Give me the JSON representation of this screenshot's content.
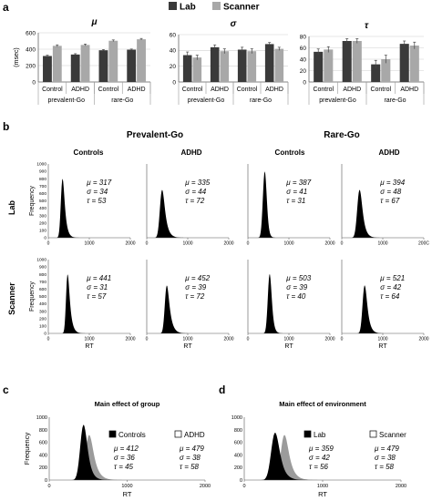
{
  "panel_letters": {
    "a": "a",
    "b": "b",
    "c": "c",
    "d": "d"
  },
  "top_legend": [
    {
      "label": "Lab",
      "color": "#3a3a3a"
    },
    {
      "label": "Scanner",
      "color": "#a8a8a8"
    }
  ],
  "colors": {
    "lab": "#3a3a3a",
    "scanner": "#a8a8a8",
    "black": "#000000",
    "grey_hist": "#8a8a8a"
  },
  "panel_b_headers": {
    "prevalent": "Prevalent-Go",
    "rare": "Rare-Go",
    "columns": [
      "Controls",
      "ADHD",
      "Controls",
      "ADHD"
    ],
    "rows": [
      "Lab",
      "Scanner"
    ]
  },
  "chart_data": [
    {
      "type": "bar",
      "title": "μ",
      "ylabel": "(msec)",
      "ylim": [
        0,
        600
      ],
      "yticks": [
        "0",
        "200",
        "400",
        "600"
      ],
      "categories": [
        "Control",
        "ADHD",
        "Control",
        "ADHD"
      ],
      "groups": [
        "prevalent-Go",
        "rare-Go"
      ],
      "series": [
        {
          "name": "Lab",
          "values": [
            317,
            335,
            387,
            394
          ],
          "err": [
            10,
            10,
            8,
            8
          ]
        },
        {
          "name": "Scanner",
          "values": [
            441,
            452,
            503,
            521
          ],
          "err": [
            12,
            10,
            10,
            10
          ]
        }
      ]
    },
    {
      "type": "bar",
      "title": "σ",
      "ylim": [
        0,
        60
      ],
      "yticks": [
        "0",
        "20",
        "40",
        "60"
      ],
      "categories": [
        "Control",
        "ADHD",
        "Control",
        "ADHD"
      ],
      "groups": [
        "prevalent-Go",
        "rare-Go"
      ],
      "series": [
        {
          "name": "Lab",
          "values": [
            34,
            44,
            41,
            48
          ],
          "err": [
            4,
            3,
            3,
            2
          ]
        },
        {
          "name": "Scanner",
          "values": [
            31,
            39,
            39,
            42
          ],
          "err": [
            3,
            3,
            3,
            2
          ]
        }
      ]
    },
    {
      "type": "bar",
      "title": "τ",
      "ylim": [
        0,
        80
      ],
      "yticks": [
        "0",
        "20",
        "40",
        "60",
        "80"
      ],
      "categories": [
        "Control",
        "ADHD",
        "Control",
        "ADHD"
      ],
      "groups": [
        "prevalent-Go",
        "rare-Go"
      ],
      "series": [
        {
          "name": "Lab",
          "values": [
            53,
            72,
            31,
            67
          ],
          "err": [
            5,
            4,
            7,
            5
          ]
        },
        {
          "name": "Scanner",
          "values": [
            57,
            72,
            40,
            64
          ],
          "err": [
            5,
            4,
            7,
            6
          ]
        }
      ]
    },
    {
      "type": "area",
      "name": "panel-b-histograms",
      "ylabel": "Frequency",
      "xlabel": "RT",
      "xlim": [
        0,
        2000
      ],
      "ylim": [
        0,
        1000
      ],
      "xticks": [
        "0",
        "1000",
        "2000"
      ],
      "xticks_last_col_lab": [
        "0",
        "1000",
        "200C"
      ],
      "yticks": [
        "0",
        "100",
        "200",
        "300",
        "400",
        "500",
        "600",
        "700",
        "800",
        "900",
        "1000"
      ],
      "cells": [
        {
          "row": "Lab",
          "col": 0,
          "mu": 317,
          "sigma": 34,
          "tau": 53,
          "peak": 800,
          "mu_text": "μ = 317",
          "sigma_text": "σ = 34",
          "tau_text": "τ = 53"
        },
        {
          "row": "Lab",
          "col": 1,
          "mu": 335,
          "sigma": 44,
          "tau": 72,
          "peak": 650,
          "mu_text": "μ = 335",
          "sigma_text": "σ = 44",
          "tau_text": "τ = 72"
        },
        {
          "row": "Lab",
          "col": 2,
          "mu": 387,
          "sigma": 41,
          "tau": 31,
          "peak": 900,
          "mu_text": "μ = 387",
          "sigma_text": "σ = 41",
          "tau_text": "τ = 31"
        },
        {
          "row": "Lab",
          "col": 3,
          "mu": 394,
          "sigma": 48,
          "tau": 67,
          "peak": 650,
          "mu_text": "μ = 394",
          "sigma_text": "σ = 48",
          "tau_text": "τ = 67"
        },
        {
          "row": "Scanner",
          "col": 0,
          "mu": 441,
          "sigma": 31,
          "tau": 57,
          "peak": 800,
          "mu_text": "μ = 441",
          "sigma_text": "σ = 31",
          "tau_text": "τ = 57"
        },
        {
          "row": "Scanner",
          "col": 1,
          "mu": 452,
          "sigma": 39,
          "tau": 72,
          "peak": 650,
          "mu_text": "μ = 452",
          "sigma_text": "σ = 39",
          "tau_text": "τ = 72"
        },
        {
          "row": "Scanner",
          "col": 2,
          "mu": 503,
          "sigma": 39,
          "tau": 40,
          "peak": 800,
          "mu_text": "μ = 503",
          "sigma_text": "σ = 39",
          "tau_text": "τ = 40"
        },
        {
          "row": "Scanner",
          "col": 3,
          "mu": 521,
          "sigma": 42,
          "tau": 64,
          "peak": 650,
          "mu_text": "μ = 521",
          "sigma_text": "σ = 42",
          "tau_text": "τ = 64"
        }
      ]
    },
    {
      "type": "area",
      "title": "Main effect of group",
      "ylabel": "Frequency",
      "xlabel": "RT",
      "xlim": [
        0,
        2000
      ],
      "ylim": [
        0,
        1000
      ],
      "xticks": [
        "0",
        "1000",
        "2000"
      ],
      "yticks": [
        "0",
        "200",
        "400",
        "600",
        "800",
        "1000"
      ],
      "series": [
        {
          "name": "Controls",
          "mu": 412,
          "sigma": 36,
          "tau": 45,
          "peak": 880,
          "fill": "#000000",
          "mu_text": "μ = 412",
          "sigma_text": "σ = 36",
          "tau_text": "τ = 45"
        },
        {
          "name": "ADHD",
          "mu": 479,
          "sigma": 38,
          "tau": 58,
          "peak": 720,
          "fill": "#8a8a8a",
          "mu_text": "μ = 479",
          "sigma_text": "σ = 38",
          "tau_text": "τ = 58"
        }
      ]
    },
    {
      "type": "area",
      "title": "Main effect of environment",
      "ylabel": "",
      "xlabel": "RT",
      "xlim": [
        0,
        2000
      ],
      "ylim": [
        0,
        1000
      ],
      "xticks": [
        "0",
        "1000",
        "2000"
      ],
      "yticks": [
        "0",
        "200",
        "400",
        "600",
        "800",
        "1000"
      ],
      "series": [
        {
          "name": "Lab",
          "mu": 359,
          "sigma": 42,
          "tau": 56,
          "peak": 750,
          "fill": "#000000",
          "mu_text": "μ = 359",
          "sigma_text": "σ = 42",
          "tau_text": "τ = 56"
        },
        {
          "name": "Scanner",
          "mu": 479,
          "sigma": 38,
          "tau": 58,
          "peak": 720,
          "fill": "#8a8a8a",
          "mu_text": "μ = 479",
          "sigma_text": "σ = 38",
          "tau_text": "τ = 58"
        }
      ]
    }
  ]
}
